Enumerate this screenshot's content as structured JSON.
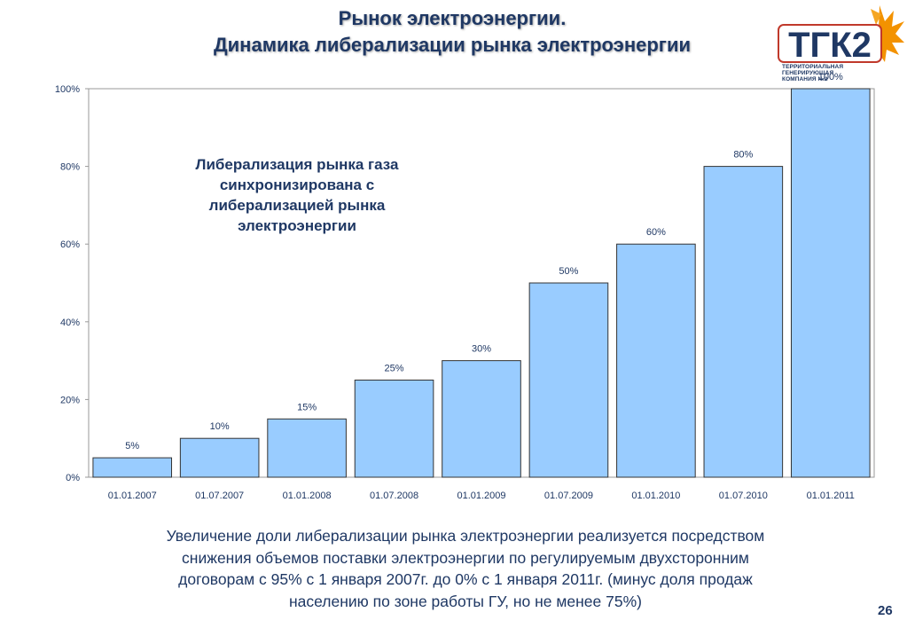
{
  "slide": {
    "title_line1": "Рынок электроэнергии.",
    "title_line2": "Динамика либерализации рынка электроэнергии",
    "logo": {
      "text": "ТГК2",
      "caption_line1": "ТЕРРИТОРИАЛЬНАЯ",
      "caption_line2": "ГЕНЕРИРУЮЩАЯ",
      "caption_line3": "КОМПАНИЯ №2"
    },
    "annotation_lines": [
      "Либерализация рынка газа",
      "синхронизирована с",
      "либерализацией рынка",
      "электроэнергии"
    ],
    "footnote_lines": [
      "Увеличение доли либерализации рынка электроэнергии реализуется посредством",
      "снижения объемов поставки электроэнергии по регулируемым двухсторонним",
      "договорам с 95% с 1 января 2007г. до 0% с 1 января 2011г. (минус доля продаж",
      "населению по зоне работы ГУ, но не менее 75%)"
    ],
    "page_number": "26"
  },
  "chart_data": {
    "type": "bar",
    "categories": [
      "01.01.2007",
      "01.07.2007",
      "01.01.2008",
      "01.07.2008",
      "01.01.2009",
      "01.07.2009",
      "01.01.2010",
      "01.07.2010",
      "01.01.2011"
    ],
    "values": [
      5,
      10,
      15,
      25,
      30,
      50,
      60,
      80,
      100
    ],
    "data_labels": [
      "5%",
      "10%",
      "15%",
      "25%",
      "30%",
      "50%",
      "60%",
      "80%",
      "100%"
    ],
    "yticks": [
      "0%",
      "20%",
      "40%",
      "60%",
      "80%",
      "100%"
    ],
    "ylim": [
      0,
      100
    ],
    "grid": false,
    "bar_color": "#99ccff",
    "bar_stroke": "#333333"
  },
  "colors": {
    "title": "#1f3864",
    "text": "#1f3864",
    "logo_orange": "#f39200"
  }
}
